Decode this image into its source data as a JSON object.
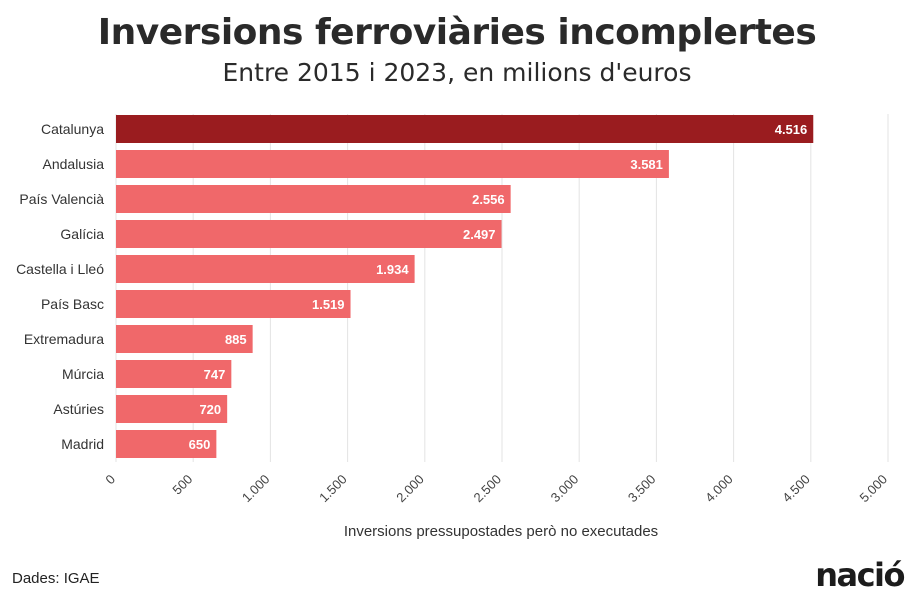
{
  "chart_data": {
    "type": "bar",
    "orientation": "horizontal",
    "title": "Inversions ferroviàries incomplertes",
    "subtitle": "Entre 2015 i 2023, en milions d'euros",
    "xlabel": "Inversions pressupostades però no executades",
    "ylabel": "",
    "xlim": [
      0,
      5000
    ],
    "xticks": [
      0,
      500,
      1000,
      1500,
      2000,
      2500,
      3000,
      3500,
      4000,
      4500,
      5000
    ],
    "xtick_labels": [
      "0",
      "500",
      "1.000",
      "1.500",
      "2.000",
      "2.500",
      "3.000",
      "3.500",
      "4.000",
      "4.500",
      "5.000"
    ],
    "grid": true,
    "categories": [
      "Catalunya",
      "Andalusia",
      "País Valencià",
      "Galícia",
      "Castella i Lleó",
      "País Basc",
      "Extremadura",
      "Múrcia",
      "Astúries",
      "Madrid"
    ],
    "values": [
      4516,
      3581,
      2556,
      2497,
      1934,
      1519,
      885,
      747,
      720,
      650
    ],
    "value_labels": [
      "4.516",
      "3.581",
      "2.556",
      "2.497",
      "1.934",
      "1.519",
      "885",
      "747",
      "720",
      "650"
    ],
    "colors": {
      "highlight": "#9a1c1f",
      "default": "#f0686a"
    },
    "highlight_category": "Catalunya"
  },
  "footer": {
    "source": "Dades: IGAE",
    "logo": "nació"
  }
}
